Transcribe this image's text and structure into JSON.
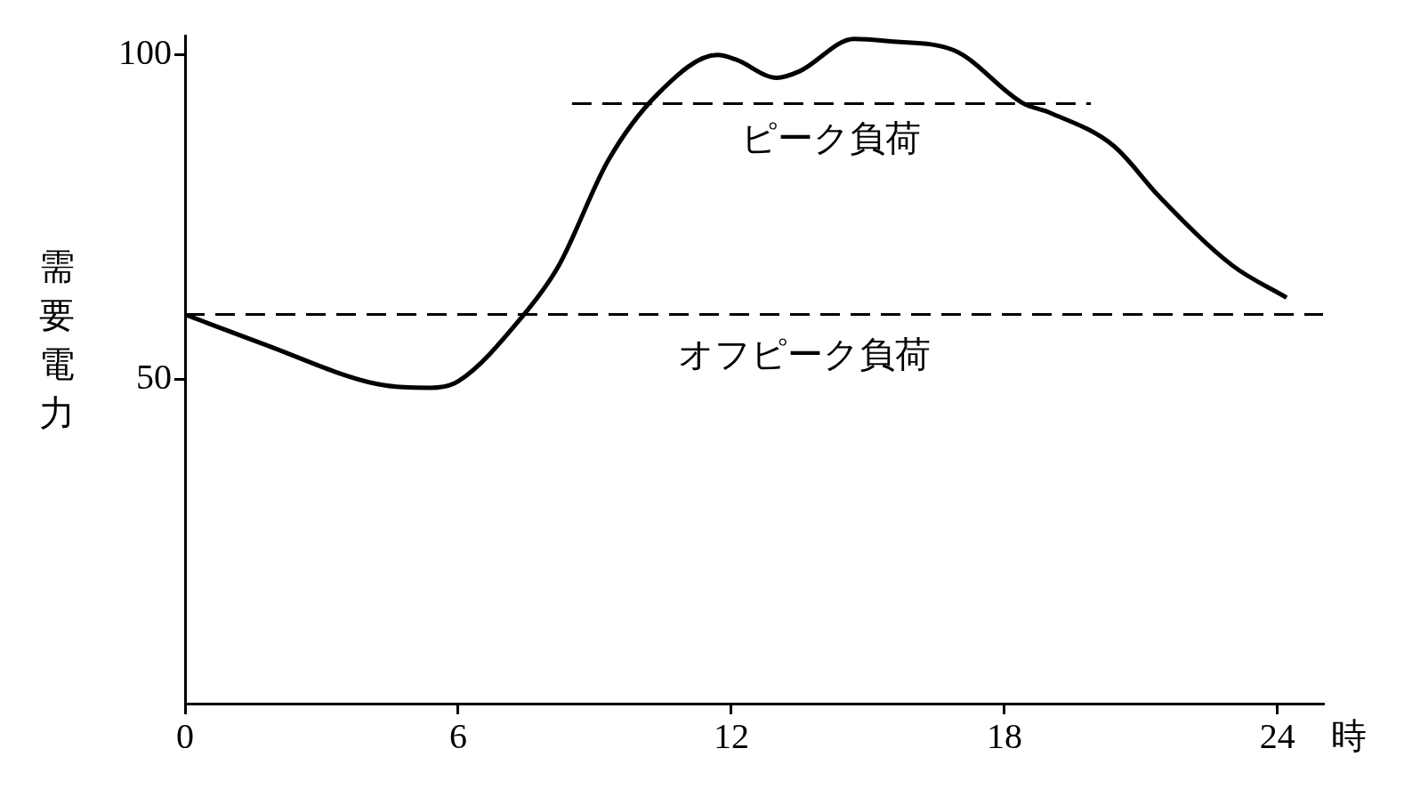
{
  "chart_data": {
    "type": "line",
    "xlabel": "時",
    "ylabel": "需要電力",
    "xlim": [
      0,
      25
    ],
    "xticks": [
      0,
      6,
      12,
      18,
      24
    ],
    "ylim": [
      0,
      103
    ],
    "yticks": [
      50,
      100
    ],
    "grid": false,
    "legend": false,
    "marker": "none",
    "series": [
      {
        "color": "#000000",
        "line_style": "solid",
        "x": [
          0,
          1.7,
          4.2,
          5.4,
          6,
          7.4,
          8.2,
          9.3,
          10.4,
          11.7,
          12.1,
          13,
          13.5,
          14.7,
          15.5,
          16.9,
          18.4,
          19,
          20.4,
          21.4,
          23,
          24.2
        ],
        "values": [
          60,
          55.5,
          49.3,
          48.7,
          49.7,
          59.6,
          67.4,
          83.8,
          94.1,
          100,
          99.3,
          96.5,
          97.5,
          102.5,
          102.1,
          100.7,
          92.6,
          91.1,
          86,
          78.2,
          67.6,
          62.6
        ]
      },
      {
        "color": "#000000",
        "line_style": "dashed",
        "x": [
          8.5,
          19.9
        ],
        "values": [
          92.5,
          92.5
        ]
      }
    ],
    "ref_lines": [
      {
        "axis": "y",
        "value": 60,
        "label": "オフピーク負荷",
        "color": "#000000",
        "line_style": "dashed"
      }
    ],
    "annotations": [
      "ピーク負荷"
    ]
  }
}
